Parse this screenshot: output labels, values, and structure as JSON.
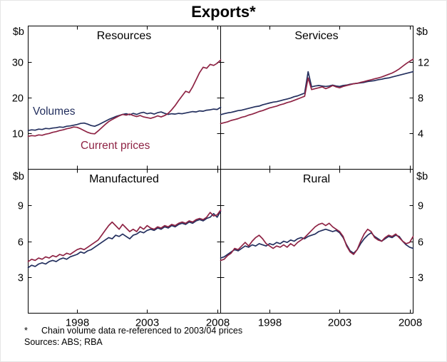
{
  "title": "Exports*",
  "axis_unit": "$b",
  "legend": {
    "volumes": "Volumes",
    "current_prices": "Current prices"
  },
  "footnote": {
    "marker": "*",
    "text": "Chain volume data re-referenced to 2003/04 prices"
  },
  "sources": "Sources: ABS; RBA",
  "colors": {
    "volumes": "#232f5e",
    "current_prices": "#8e2344",
    "axis": "#000000"
  },
  "chart_data": {
    "type": "line",
    "layout": "2x2-panels",
    "series_names": [
      "Volumes",
      "Current prices"
    ],
    "x": {
      "start": 1994.5,
      "step": 0.25,
      "domain": [
        1994.5,
        2008.25
      ],
      "ticks": [
        1998,
        2003,
        2008
      ],
      "tick_labels": [
        "1998",
        "2003",
        "2008"
      ]
    },
    "panels": [
      {
        "title": "Resources",
        "unit": "$b",
        "axis_side": "left",
        "ylim": [
          0,
          40
        ],
        "yticks": [
          10,
          20,
          30
        ],
        "volumes": [
          10.8,
          11.0,
          10.9,
          11.2,
          11.1,
          11.4,
          11.3,
          11.5,
          11.6,
          11.8,
          11.7,
          12.0,
          12.1,
          12.3,
          12.5,
          12.8,
          12.9,
          12.6,
          12.2,
          12.0,
          12.4,
          12.9,
          13.4,
          13.9,
          14.3,
          14.7,
          15.0,
          15.3,
          15.5,
          15.2,
          15.6,
          15.3,
          15.7,
          15.9,
          15.5,
          15.7,
          15.4,
          15.8,
          16.0,
          15.6,
          15.3,
          15.5,
          15.4,
          15.6,
          15.5,
          15.7,
          15.9,
          16.1,
          16.0,
          16.3,
          16.2,
          16.5,
          16.6,
          16.8,
          16.7,
          17.3
        ],
        "current_prices": [
          9.2,
          9.4,
          9.3,
          9.6,
          9.5,
          9.8,
          10.0,
          10.3,
          10.5,
          10.8,
          11.0,
          11.3,
          11.5,
          11.8,
          11.7,
          11.3,
          10.8,
          10.3,
          10.0,
          9.9,
          10.7,
          11.6,
          12.5,
          13.3,
          13.9,
          14.4,
          14.9,
          15.3,
          15.1,
          15.4,
          15.0,
          14.7,
          15.0,
          14.6,
          14.4,
          14.2,
          14.5,
          14.9,
          14.6,
          15.0,
          15.6,
          16.6,
          17.8,
          19.2,
          20.5,
          21.8,
          21.4,
          23.0,
          25.0,
          27.0,
          28.5,
          28.2,
          29.3,
          29.0,
          29.6,
          30.5
        ]
      },
      {
        "title": "Services",
        "unit": "$b",
        "axis_side": "right",
        "ylim": [
          0,
          16
        ],
        "yticks": [
          4,
          8,
          12
        ],
        "volumes": [
          6.1,
          6.2,
          6.3,
          6.35,
          6.45,
          6.55,
          6.6,
          6.7,
          6.8,
          6.9,
          7.0,
          7.05,
          7.2,
          7.3,
          7.4,
          7.5,
          7.55,
          7.65,
          7.75,
          7.85,
          7.95,
          8.1,
          8.2,
          8.35,
          8.5,
          10.9,
          9.2,
          9.3,
          9.35,
          9.3,
          9.25,
          9.3,
          9.4,
          9.3,
          9.25,
          9.35,
          9.4,
          9.5,
          9.55,
          9.6,
          9.65,
          9.7,
          9.8,
          9.85,
          9.9,
          10.0,
          10.05,
          10.15,
          10.2,
          10.3,
          10.4,
          10.5,
          10.6,
          10.7,
          10.8,
          10.9
        ],
        "current_prices": [
          5.1,
          5.2,
          5.3,
          5.45,
          5.55,
          5.65,
          5.8,
          5.9,
          6.05,
          6.15,
          6.3,
          6.45,
          6.55,
          6.7,
          6.85,
          6.95,
          7.05,
          7.2,
          7.3,
          7.45,
          7.55,
          7.7,
          7.85,
          8.0,
          8.15,
          10.2,
          8.9,
          9.0,
          9.1,
          9.2,
          9.0,
          9.15,
          9.35,
          9.2,
          9.1,
          9.25,
          9.35,
          9.45,
          9.55,
          9.6,
          9.7,
          9.8,
          9.9,
          10.0,
          10.1,
          10.2,
          10.3,
          10.45,
          10.6,
          10.75,
          10.95,
          11.2,
          11.5,
          11.8,
          12.05,
          12.3
        ]
      },
      {
        "title": "Manufactured",
        "unit": "$b",
        "axis_side": "left",
        "ylim": [
          0,
          12
        ],
        "yticks": [
          3,
          6,
          9
        ],
        "volumes": [
          3.8,
          4.0,
          3.9,
          4.1,
          4.2,
          4.1,
          4.3,
          4.4,
          4.3,
          4.5,
          4.6,
          4.5,
          4.7,
          4.8,
          4.9,
          5.1,
          5.0,
          5.2,
          5.3,
          5.5,
          5.7,
          5.9,
          6.1,
          6.3,
          6.2,
          6.5,
          6.4,
          6.6,
          6.4,
          6.2,
          6.5,
          6.6,
          6.8,
          6.7,
          6.9,
          7.0,
          6.9,
          7.1,
          7.0,
          7.2,
          7.1,
          7.3,
          7.2,
          7.4,
          7.5,
          7.4,
          7.6,
          7.5,
          7.7,
          7.8,
          7.7,
          7.9,
          8.0,
          8.3,
          8.0,
          8.5
        ],
        "current_prices": [
          4.3,
          4.5,
          4.4,
          4.6,
          4.5,
          4.7,
          4.6,
          4.8,
          4.7,
          4.9,
          4.8,
          5.0,
          4.9,
          5.1,
          5.3,
          5.4,
          5.3,
          5.5,
          5.7,
          5.9,
          6.1,
          6.5,
          6.9,
          7.3,
          7.6,
          7.3,
          7.0,
          7.4,
          7.1,
          6.8,
          7.0,
          6.8,
          7.2,
          7.0,
          7.3,
          7.1,
          7.0,
          7.2,
          7.1,
          7.3,
          7.2,
          7.4,
          7.3,
          7.5,
          7.6,
          7.5,
          7.7,
          7.6,
          7.8,
          7.9,
          7.8,
          8.0,
          8.4,
          8.1,
          8.2,
          8.6
        ]
      },
      {
        "title": "Rural",
        "unit": "$b",
        "axis_side": "right",
        "ylim": [
          0,
          12
        ],
        "yticks": [
          3,
          6,
          9
        ],
        "volumes": [
          4.6,
          4.7,
          4.9,
          5.1,
          5.3,
          5.2,
          5.4,
          5.6,
          5.5,
          5.7,
          5.6,
          5.8,
          5.7,
          5.6,
          5.8,
          5.7,
          5.9,
          5.8,
          6.0,
          5.9,
          6.1,
          6.0,
          6.2,
          6.3,
          6.2,
          6.4,
          6.5,
          6.6,
          6.8,
          6.9,
          7.0,
          6.9,
          6.8,
          6.9,
          6.7,
          6.3,
          5.7,
          5.2,
          5.0,
          5.3,
          5.8,
          6.2,
          6.5,
          6.7,
          6.4,
          6.2,
          6.0,
          6.2,
          6.4,
          6.3,
          6.5,
          6.4,
          6.0,
          5.7,
          5.5,
          5.4
        ],
        "current_prices": [
          4.4,
          4.5,
          4.8,
          5.0,
          5.4,
          5.3,
          5.6,
          5.9,
          5.6,
          6.0,
          6.3,
          6.5,
          6.2,
          5.8,
          5.6,
          5.4,
          5.6,
          5.5,
          5.7,
          5.5,
          5.8,
          5.6,
          5.9,
          6.1,
          6.3,
          6.6,
          6.9,
          7.2,
          7.4,
          7.5,
          7.3,
          7.5,
          7.2,
          7.0,
          6.8,
          6.4,
          5.6,
          5.1,
          4.9,
          5.3,
          6.0,
          6.6,
          7.0,
          6.8,
          6.3,
          6.1,
          6.0,
          6.3,
          6.5,
          6.4,
          6.6,
          6.3,
          6.0,
          5.8,
          5.9,
          6.4
        ]
      }
    ]
  }
}
